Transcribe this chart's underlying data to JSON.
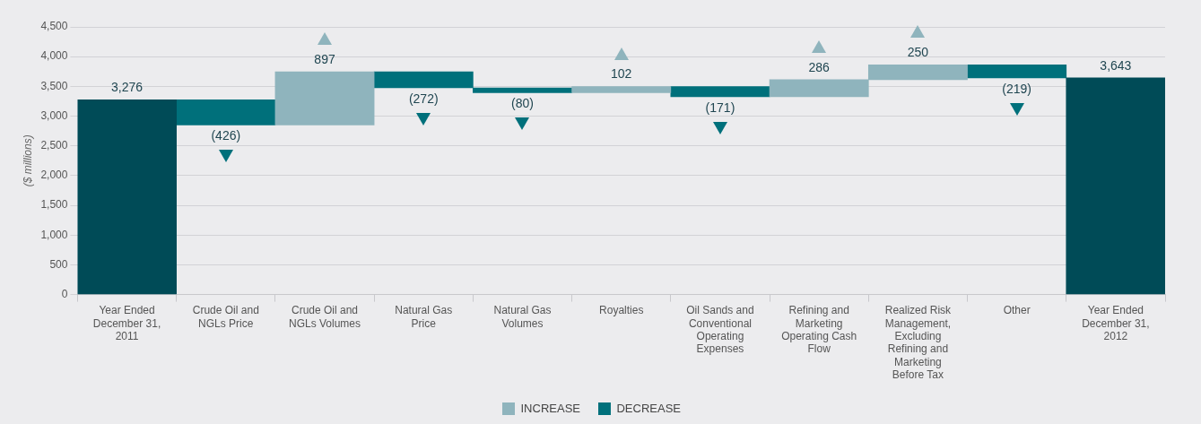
{
  "chart_data": {
    "type": "bar",
    "ylabel": "($ millions)",
    "categories": [
      "Year Ended December 31, 2011",
      "Crude Oil and NGLs Price",
      "Crude Oil and NGLs Volumes",
      "Natural Gas Price",
      "Natural Gas Volumes",
      "Royalties",
      "Oil Sands and Conventional Operating Expenses",
      "Refining and Marketing Operating Cash Flow",
      "Realized Risk Management, Excluding Refining and Marketing Before Tax",
      "Other",
      "Year Ended December 31, 2012"
    ],
    "series": [
      {
        "color": "#004b57",
        "values": [
          3276,
          null,
          null,
          null,
          null,
          null,
          null,
          null,
          null,
          null,
          3643
        ],
        "base": [
          0,
          null,
          null,
          null,
          null,
          null,
          null,
          null,
          null,
          null,
          0
        ],
        "value_labels": [
          "3,276",
          null,
          null,
          null,
          null,
          null,
          null,
          null,
          null,
          null,
          "3,643"
        ]
      },
      {
        "name": "INCREASE",
        "color": "#8fb4bd",
        "marker": "triangle",
        "values": [
          null,
          null,
          897,
          null,
          null,
          102,
          null,
          286,
          250,
          null,
          null
        ],
        "base": [
          null,
          null,
          2850,
          null,
          null,
          3395,
          null,
          3326,
          3612,
          null,
          null
        ],
        "value_labels": [
          null,
          null,
          "897",
          null,
          null,
          "102",
          null,
          "286",
          "250",
          null,
          null
        ]
      },
      {
        "name": "DECREASE",
        "color": "#00707b",
        "marker": "triangle",
        "values": [
          null,
          -426,
          null,
          -272,
          -80,
          null,
          -171,
          null,
          null,
          -219,
          null
        ],
        "base": [
          null,
          3276,
          null,
          3747,
          3475,
          null,
          3497,
          null,
          null,
          3862,
          null
        ],
        "value_labels": [
          null,
          "(426)",
          null,
          "(272)",
          "(80)",
          null,
          "(171)",
          null,
          null,
          "(219)",
          null
        ]
      }
    ],
    "ylim": [
      0,
      4500
    ],
    "yticks": [
      {
        "value": 0,
        "label": "0"
      },
      {
        "value": 500,
        "label": "500"
      },
      {
        "value": 1000,
        "label": "1,000"
      },
      {
        "value": 1500,
        "label": "1,500"
      },
      {
        "value": 2000,
        "label": "2,000"
      },
      {
        "value": 2500,
        "label": "2,500"
      },
      {
        "value": 3000,
        "label": "3,000"
      },
      {
        "value": 3500,
        "label": "3,500"
      },
      {
        "value": 4000,
        "label": "4,000"
      },
      {
        "value": 4500,
        "label": "4,500"
      }
    ],
    "grid": "y",
    "legend": "bottom"
  }
}
